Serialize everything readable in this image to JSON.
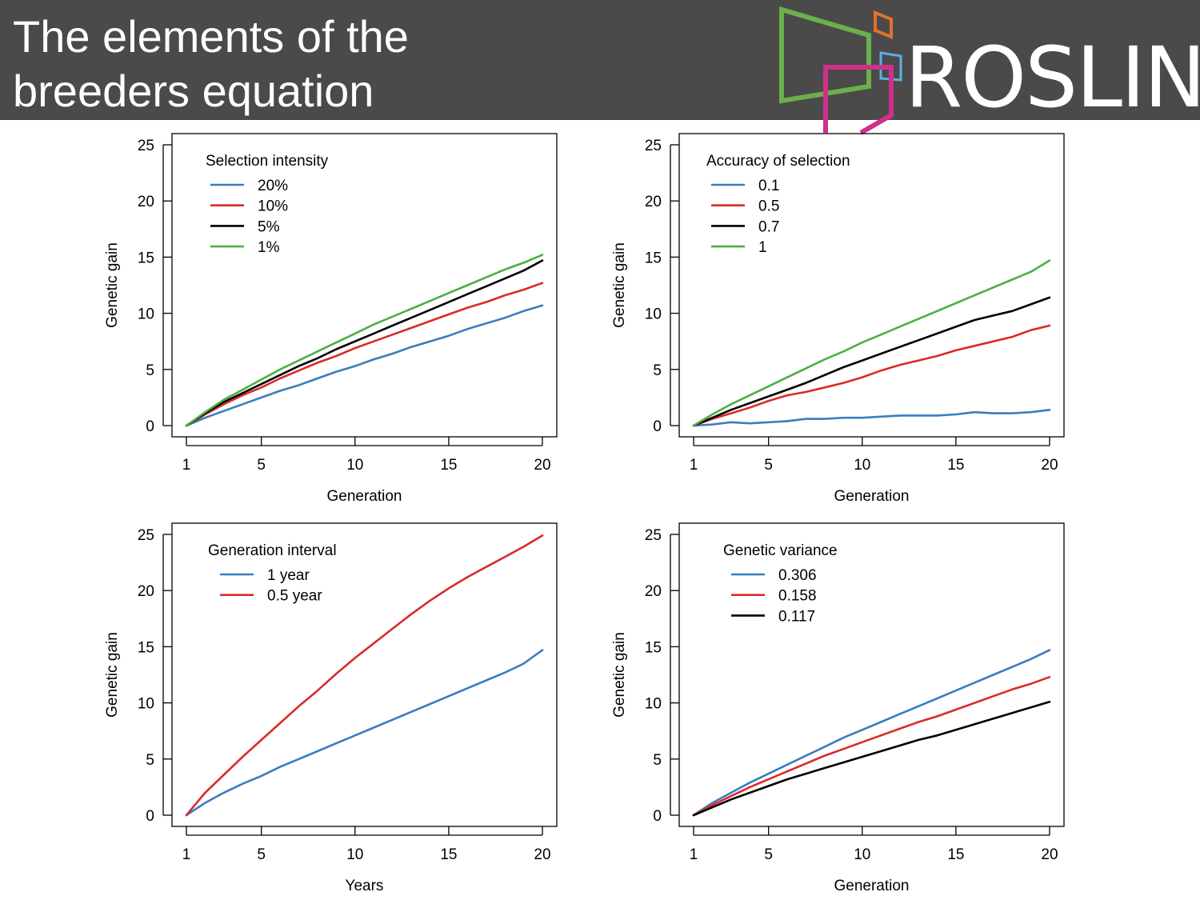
{
  "header": {
    "title_lines": [
      "The elements of the",
      "breeders equation"
    ],
    "logo_text": "ROSLIN",
    "logo_colors": {
      "green": "#6ab04c",
      "orange": "#e2722c",
      "blue": "#5bb0e2",
      "magenta": "#d0308a"
    }
  },
  "chart_data": [
    {
      "type": "line",
      "legend_title": "Selection intensity",
      "xlabel": "Generation",
      "ylabel": "Genetic gain",
      "xlim": [
        1,
        20
      ],
      "ylim": [
        0,
        25
      ],
      "xticks": [
        1,
        5,
        10,
        15,
        20
      ],
      "yticks": [
        0,
        5,
        10,
        15,
        20,
        25
      ],
      "legend_position": "top-left",
      "grid": false,
      "x": [
        1,
        2,
        3,
        4,
        5,
        6,
        7,
        8,
        9,
        10,
        11,
        12,
        13,
        14,
        15,
        16,
        17,
        18,
        19,
        20
      ],
      "series": [
        {
          "name": "20%",
          "color": "#3a7dbf",
          "values": [
            0,
            0.7,
            1.3,
            1.9,
            2.5,
            3.1,
            3.6,
            4.2,
            4.8,
            5.3,
            5.9,
            6.4,
            7.0,
            7.5,
            8.0,
            8.6,
            9.1,
            9.6,
            10.2,
            10.7
          ]
        },
        {
          "name": "10%",
          "color": "#d92b2b",
          "values": [
            0,
            1.0,
            1.9,
            2.7,
            3.4,
            4.2,
            4.9,
            5.6,
            6.2,
            6.9,
            7.5,
            8.1,
            8.7,
            9.3,
            9.9,
            10.5,
            11.0,
            11.6,
            12.1,
            12.7
          ]
        },
        {
          "name": "5%",
          "color": "#000000",
          "values": [
            0,
            1.1,
            2.1,
            2.9,
            3.7,
            4.5,
            5.3,
            6.0,
            6.8,
            7.5,
            8.2,
            8.9,
            9.6,
            10.3,
            11.0,
            11.7,
            12.4,
            13.1,
            13.8,
            14.7
          ]
        },
        {
          "name": "1%",
          "color": "#4bb043",
          "values": [
            0,
            1.2,
            2.3,
            3.2,
            4.1,
            5.0,
            5.8,
            6.6,
            7.4,
            8.2,
            9.0,
            9.7,
            10.4,
            11.1,
            11.8,
            12.5,
            13.2,
            13.9,
            14.5,
            15.2
          ]
        }
      ]
    },
    {
      "type": "line",
      "legend_title": "Accuracy of selection",
      "xlabel": "Generation",
      "ylabel": "Genetic gain",
      "xlim": [
        1,
        20
      ],
      "ylim": [
        0,
        25
      ],
      "xticks": [
        1,
        5,
        10,
        15,
        20
      ],
      "yticks": [
        0,
        5,
        10,
        15,
        20,
        25
      ],
      "legend_position": "top-left",
      "grid": false,
      "x": [
        1,
        2,
        3,
        4,
        5,
        6,
        7,
        8,
        9,
        10,
        11,
        12,
        13,
        14,
        15,
        16,
        17,
        18,
        19,
        20
      ],
      "series": [
        {
          "name": "0.1",
          "color": "#3a7dbf",
          "values": [
            0,
            0.1,
            0.3,
            0.2,
            0.3,
            0.4,
            0.6,
            0.6,
            0.7,
            0.7,
            0.8,
            0.9,
            0.9,
            0.9,
            1.0,
            1.2,
            1.1,
            1.1,
            1.2,
            1.4
          ]
        },
        {
          "name": "0.5",
          "color": "#d92b2b",
          "values": [
            0,
            0.6,
            1.1,
            1.6,
            2.2,
            2.7,
            3.0,
            3.4,
            3.8,
            4.3,
            4.9,
            5.4,
            5.8,
            6.2,
            6.7,
            7.1,
            7.5,
            7.9,
            8.5,
            8.9
          ]
        },
        {
          "name": "0.7",
          "color": "#000000",
          "values": [
            0,
            0.7,
            1.4,
            2.0,
            2.6,
            3.2,
            3.8,
            4.5,
            5.2,
            5.8,
            6.4,
            7.0,
            7.6,
            8.2,
            8.8,
            9.4,
            9.8,
            10.2,
            10.8,
            11.4
          ]
        },
        {
          "name": "1",
          "color": "#4bb043",
          "values": [
            0,
            1.0,
            1.9,
            2.7,
            3.5,
            4.3,
            5.1,
            5.9,
            6.6,
            7.4,
            8.1,
            8.8,
            9.5,
            10.2,
            10.9,
            11.6,
            12.3,
            13.0,
            13.7,
            14.7
          ]
        }
      ]
    },
    {
      "type": "line",
      "legend_title": "Generation interval",
      "xlabel": "Years",
      "ylabel": "Genetic gain",
      "xlim": [
        1,
        20
      ],
      "ylim": [
        0,
        25
      ],
      "xticks": [
        1,
        5,
        10,
        15,
        20
      ],
      "yticks": [
        0,
        5,
        10,
        15,
        20,
        25
      ],
      "legend_position": "top-left",
      "grid": false,
      "series": [
        {
          "name": "1 year",
          "color": "#3a7dbf",
          "x": [
            1,
            2,
            3,
            4,
            5,
            6,
            7,
            8,
            9,
            10,
            11,
            12,
            13,
            14,
            15,
            16,
            17,
            18,
            19,
            20
          ],
          "values": [
            0,
            1.1,
            2.0,
            2.8,
            3.5,
            4.3,
            5.0,
            5.7,
            6.4,
            7.1,
            7.8,
            8.5,
            9.2,
            9.9,
            10.6,
            11.3,
            12.0,
            12.7,
            13.5,
            14.7
          ]
        },
        {
          "name": "0.5 year",
          "color": "#d92b2b",
          "x": [
            1,
            2,
            3,
            4,
            5,
            6,
            7,
            8,
            9,
            10,
            11,
            12,
            13,
            14,
            15,
            16,
            17,
            18,
            19,
            20
          ],
          "values": [
            0,
            2.0,
            3.6,
            5.2,
            6.7,
            8.2,
            9.7,
            11.1,
            12.6,
            14.0,
            15.3,
            16.6,
            17.9,
            19.1,
            20.2,
            21.2,
            22.1,
            23.0,
            23.9,
            24.9
          ]
        }
      ]
    },
    {
      "type": "line",
      "legend_title": "Genetic variance",
      "xlabel": "Generation",
      "ylabel": "Genetic gain",
      "xlim": [
        1,
        20
      ],
      "ylim": [
        0,
        25
      ],
      "xticks": [
        1,
        5,
        10,
        15,
        20
      ],
      "yticks": [
        0,
        5,
        10,
        15,
        20,
        25
      ],
      "legend_position": "top-left",
      "grid": false,
      "x": [
        1,
        2,
        3,
        4,
        5,
        6,
        7,
        8,
        9,
        10,
        11,
        12,
        13,
        14,
        15,
        16,
        17,
        18,
        19,
        20
      ],
      "series": [
        {
          "name": "0.306",
          "color": "#3a7dbf",
          "values": [
            0,
            1.1,
            2.0,
            2.9,
            3.7,
            4.5,
            5.3,
            6.1,
            6.9,
            7.6,
            8.3,
            9.0,
            9.7,
            10.4,
            11.1,
            11.8,
            12.5,
            13.2,
            13.9,
            14.7
          ]
        },
        {
          "name": "0.158",
          "color": "#d92b2b",
          "values": [
            0,
            0.9,
            1.7,
            2.5,
            3.2,
            3.9,
            4.6,
            5.3,
            5.9,
            6.5,
            7.1,
            7.7,
            8.3,
            8.8,
            9.4,
            10.0,
            10.6,
            11.2,
            11.7,
            12.3
          ]
        },
        {
          "name": "0.117",
          "color": "#000000",
          "values": [
            0,
            0.7,
            1.4,
            2.0,
            2.6,
            3.2,
            3.7,
            4.2,
            4.7,
            5.2,
            5.7,
            6.2,
            6.7,
            7.1,
            7.6,
            8.1,
            8.6,
            9.1,
            9.6,
            10.1
          ]
        }
      ]
    }
  ]
}
